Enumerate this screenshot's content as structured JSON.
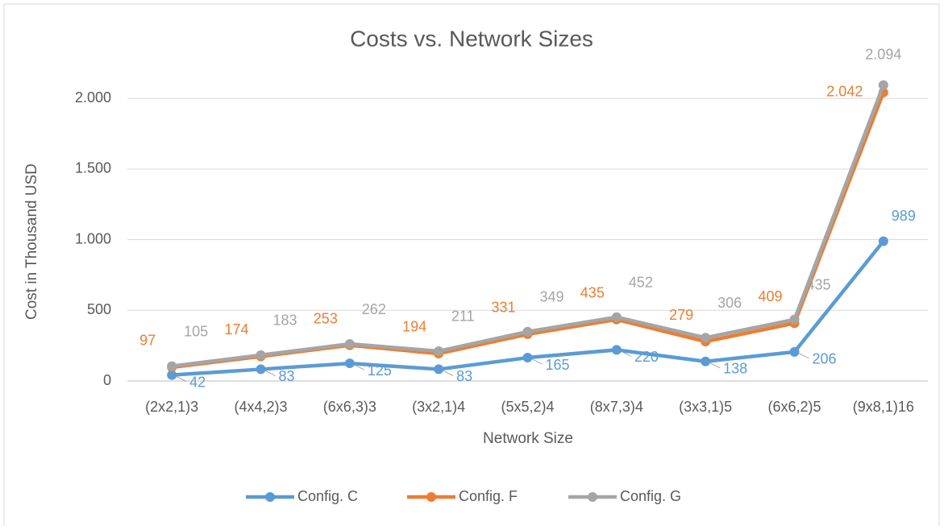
{
  "chart_data": {
    "type": "line",
    "title": "Costs vs. Network Sizes",
    "x_label": "Network Size",
    "y_label": "Cost in Thousand USD",
    "categories": [
      "(2x2,1)3",
      "(4x4,2)3",
      "(6x6,3)3",
      "(3x2,1)4",
      "(5x5,2)4",
      "(8x7,3)4",
      "(3x3,1)5",
      "(6x6,2)5",
      "(9x8,1)16"
    ],
    "series": [
      {
        "name": "Config. C",
        "color": "#5b9bd5",
        "values": [
          42,
          83,
          125,
          83,
          165,
          220,
          138,
          206,
          989
        ]
      },
      {
        "name": "Config. F",
        "color": "#ed7d31",
        "values": [
          97,
          174,
          253,
          194,
          331,
          435,
          279,
          409,
          2042
        ],
        "value_labels": [
          "97",
          "174",
          "253",
          "194",
          "331",
          "435",
          "279",
          "409",
          "2.042"
        ]
      },
      {
        "name": "Config. G",
        "color": "#a5a5a5",
        "values": [
          105,
          183,
          262,
          211,
          349,
          452,
          306,
          435,
          2094
        ],
        "value_labels": [
          "105",
          "183",
          "262",
          "211",
          "349",
          "452",
          "306",
          "435",
          "2.094"
        ]
      }
    ],
    "ylim": [
      0,
      2200
    ],
    "yticks": [
      0,
      500,
      {
        "value": 1000,
        "label": "1.000"
      },
      {
        "value": 1500,
        "label": "1.500"
      },
      {
        "value": 2000,
        "label": "2.000"
      }
    ],
    "grid": true,
    "legend": "bottom"
  }
}
